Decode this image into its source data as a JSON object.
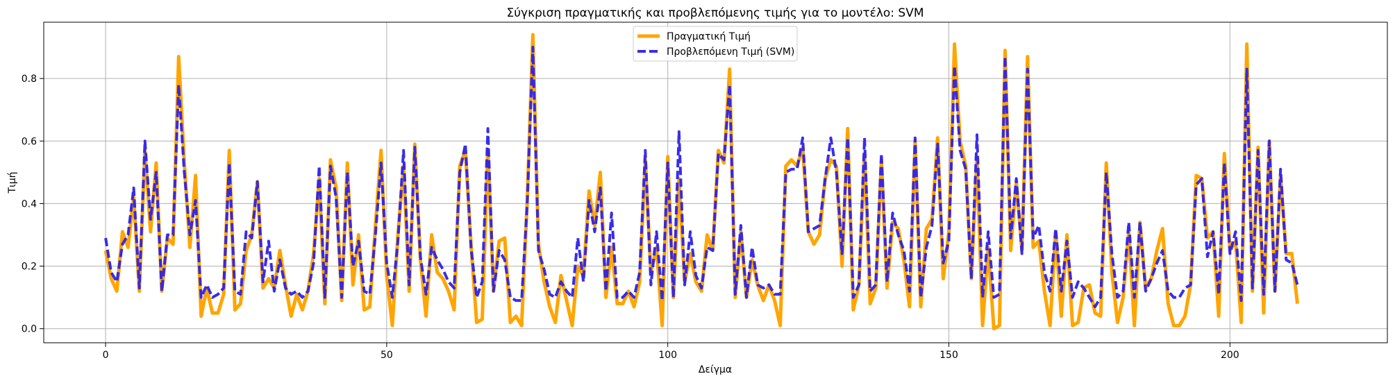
{
  "chart_data": {
    "type": "line",
    "title": "Σύγκριση πραγματικής και προβλεπόμενης τιμής για το μοντέλο: SVM",
    "xlabel": "Δείγμα",
    "ylabel": "Τιμή",
    "xlim": [
      -11,
      228
    ],
    "ylim": [
      -0.045,
      0.98
    ],
    "xticks": [
      0,
      50,
      100,
      150,
      200
    ],
    "yticks": [
      0.0,
      0.2,
      0.4,
      0.6,
      0.8
    ],
    "xtick_labels": [
      "0",
      "50",
      "100",
      "150",
      "200"
    ],
    "ytick_labels": [
      "0.0",
      "0.2",
      "0.4",
      "0.6",
      "0.8"
    ],
    "grid": true,
    "legend": "upper center",
    "colors": {
      "actual": "#ffa500",
      "predicted": "#2e22e8"
    },
    "series": [
      {
        "name": "Πραγματική Τιμή",
        "style": "solid",
        "values": [
          0.25,
          0.16,
          0.12,
          0.31,
          0.26,
          0.42,
          0.12,
          0.57,
          0.31,
          0.53,
          0.12,
          0.29,
          0.27,
          0.87,
          0.53,
          0.26,
          0.49,
          0.04,
          0.13,
          0.05,
          0.05,
          0.11,
          0.57,
          0.06,
          0.08,
          0.25,
          0.3,
          0.47,
          0.13,
          0.16,
          0.13,
          0.25,
          0.14,
          0.04,
          0.11,
          0.06,
          0.12,
          0.24,
          0.48,
          0.08,
          0.54,
          0.45,
          0.09,
          0.53,
          0.14,
          0.3,
          0.06,
          0.07,
          0.33,
          0.57,
          0.17,
          0.01,
          0.3,
          0.52,
          0.12,
          0.59,
          0.22,
          0.04,
          0.3,
          0.18,
          0.16,
          0.12,
          0.06,
          0.52,
          0.57,
          0.27,
          0.02,
          0.03,
          0.57,
          0.12,
          0.28,
          0.29,
          0.02,
          0.04,
          0.01,
          0.41,
          0.94,
          0.27,
          0.15,
          0.07,
          0.02,
          0.17,
          0.09,
          0.01,
          0.2,
          0.17,
          0.44,
          0.33,
          0.5,
          0.1,
          0.26,
          0.08,
          0.08,
          0.12,
          0.07,
          0.15,
          0.54,
          0.18,
          0.26,
          0.01,
          0.55,
          0.1,
          0.48,
          0.15,
          0.24,
          0.15,
          0.12,
          0.3,
          0.25,
          0.57,
          0.53,
          0.83,
          0.1,
          0.31,
          0.1,
          0.22,
          0.14,
          0.09,
          0.14,
          0.09,
          0.01,
          0.52,
          0.54,
          0.52,
          0.58,
          0.31,
          0.27,
          0.3,
          0.48,
          0.54,
          0.52,
          0.2,
          0.64,
          0.06,
          0.14,
          0.56,
          0.08,
          0.13,
          0.54,
          0.13,
          0.34,
          0.32,
          0.22,
          0.07,
          0.6,
          0.07,
          0.32,
          0.35,
          0.61,
          0.16,
          0.31,
          0.91,
          0.6,
          0.52,
          0.16,
          0.55,
          0.01,
          0.26,
          0.0,
          0.01,
          0.89,
          0.25,
          0.47,
          0.25,
          0.87,
          0.26,
          0.28,
          0.12,
          0.01,
          0.31,
          0.04,
          0.3,
          0.01,
          0.02,
          0.13,
          0.14,
          0.05,
          0.04,
          0.53,
          0.18,
          0.02,
          0.1,
          0.31,
          0.01,
          0.34,
          0.13,
          0.16,
          0.25,
          0.32,
          0.08,
          0.01,
          0.01,
          0.04,
          0.14,
          0.49,
          0.48,
          0.29,
          0.31,
          0.04,
          0.56,
          0.25,
          0.28,
          0.02,
          0.91,
          0.12,
          0.58,
          0.05,
          0.6,
          0.12,
          0.49,
          0.24,
          0.24,
          0.08
        ]
      },
      {
        "name": "Προβλεπόμενη Τιμή (SVM)",
        "style": "dashed",
        "values": [
          0.29,
          0.18,
          0.15,
          0.27,
          0.3,
          0.45,
          0.13,
          0.6,
          0.35,
          0.5,
          0.12,
          0.3,
          0.3,
          0.78,
          0.5,
          0.3,
          0.41,
          0.1,
          0.14,
          0.1,
          0.11,
          0.13,
          0.53,
          0.12,
          0.11,
          0.31,
          0.29,
          0.47,
          0.15,
          0.28,
          0.12,
          0.22,
          0.13,
          0.11,
          0.12,
          0.1,
          0.12,
          0.21,
          0.52,
          0.1,
          0.52,
          0.42,
          0.1,
          0.5,
          0.2,
          0.28,
          0.12,
          0.11,
          0.3,
          0.53,
          0.21,
          0.1,
          0.28,
          0.57,
          0.14,
          0.58,
          0.23,
          0.11,
          0.26,
          0.22,
          0.19,
          0.15,
          0.13,
          0.5,
          0.59,
          0.26,
          0.1,
          0.15,
          0.64,
          0.12,
          0.25,
          0.22,
          0.1,
          0.09,
          0.09,
          0.4,
          0.9,
          0.25,
          0.19,
          0.11,
          0.1,
          0.15,
          0.12,
          0.1,
          0.29,
          0.15,
          0.41,
          0.31,
          0.45,
          0.12,
          0.37,
          0.1,
          0.1,
          0.12,
          0.1,
          0.18,
          0.57,
          0.14,
          0.31,
          0.09,
          0.53,
          0.1,
          0.63,
          0.14,
          0.31,
          0.17,
          0.13,
          0.26,
          0.25,
          0.56,
          0.54,
          0.78,
          0.11,
          0.33,
          0.1,
          0.26,
          0.14,
          0.13,
          0.14,
          0.11,
          0.11,
          0.5,
          0.51,
          0.51,
          0.61,
          0.31,
          0.32,
          0.33,
          0.48,
          0.61,
          0.5,
          0.24,
          0.61,
          0.1,
          0.14,
          0.61,
          0.12,
          0.14,
          0.56,
          0.15,
          0.37,
          0.3,
          0.25,
          0.12,
          0.61,
          0.1,
          0.26,
          0.33,
          0.59,
          0.21,
          0.28,
          0.84,
          0.57,
          0.51,
          0.16,
          0.62,
          0.1,
          0.31,
          0.1,
          0.11,
          0.87,
          0.29,
          0.48,
          0.24,
          0.83,
          0.29,
          0.33,
          0.18,
          0.12,
          0.32,
          0.12,
          0.28,
          0.1,
          0.15,
          0.13,
          0.1,
          0.07,
          0.1,
          0.5,
          0.24,
          0.1,
          0.12,
          0.34,
          0.1,
          0.34,
          0.12,
          0.16,
          0.21,
          0.25,
          0.12,
          0.1,
          0.1,
          0.13,
          0.14,
          0.46,
          0.48,
          0.23,
          0.31,
          0.11,
          0.53,
          0.24,
          0.31,
          0.09,
          0.83,
          0.13,
          0.57,
          0.11,
          0.6,
          0.12,
          0.51,
          0.22,
          0.21,
          0.14
        ]
      }
    ]
  }
}
